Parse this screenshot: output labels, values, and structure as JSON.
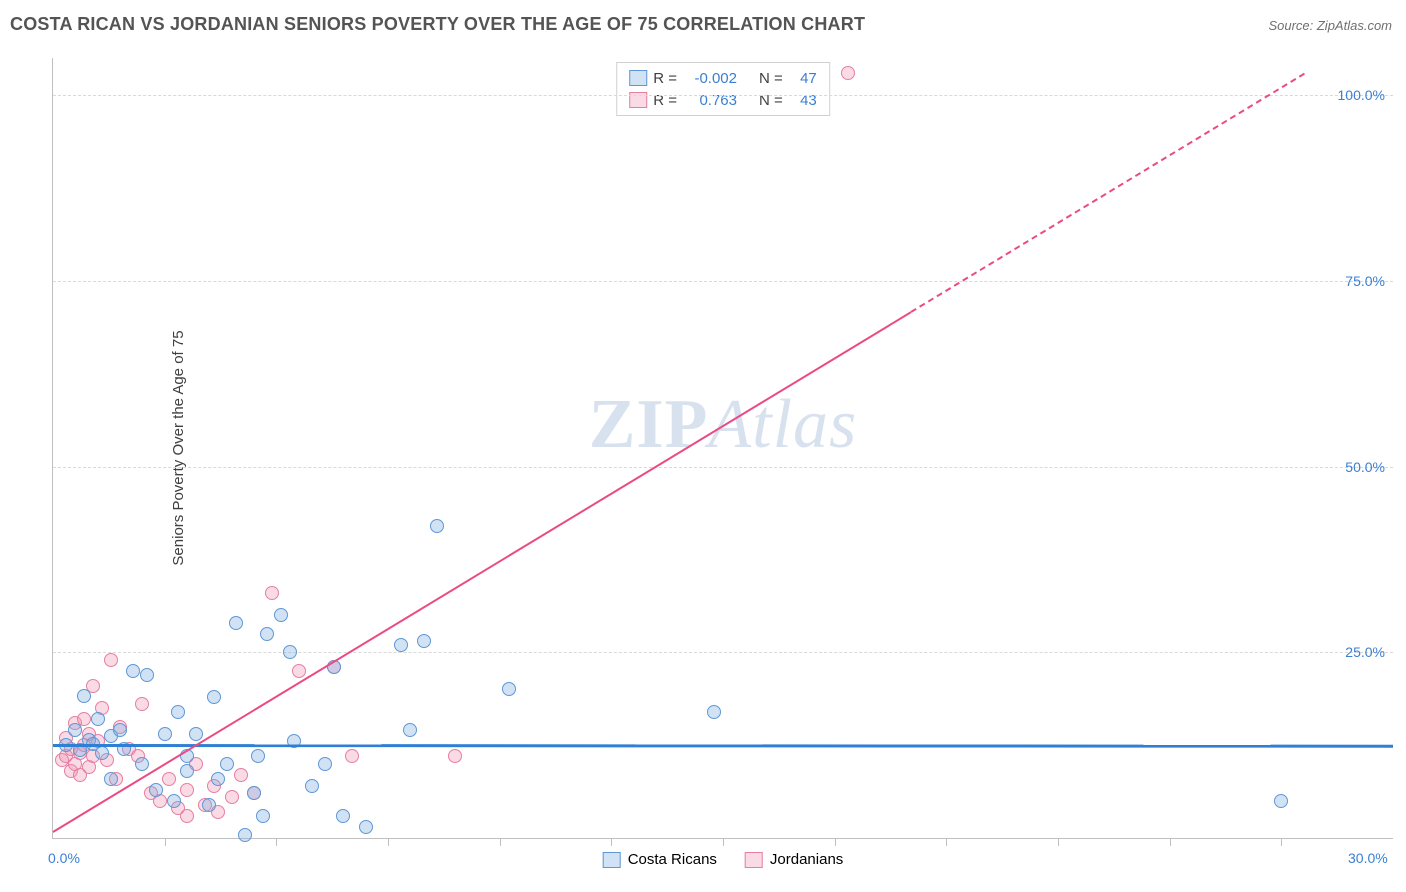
{
  "header": {
    "title": "COSTA RICAN VS JORDANIAN SENIORS POVERTY OVER THE AGE OF 75 CORRELATION CHART",
    "source": "Source: ZipAtlas.com"
  },
  "chart": {
    "type": "scatter",
    "ylabel": "Seniors Poverty Over the Age of 75",
    "watermark_a": "ZIP",
    "watermark_b": "Atlas",
    "xlim": [
      0,
      30
    ],
    "ylim": [
      0,
      105
    ],
    "x_axis_label_min": "0.0%",
    "x_axis_label_max": "30.0%",
    "y_ticks": [
      {
        "v": 25,
        "label": "25.0%"
      },
      {
        "v": 50,
        "label": "50.0%"
      },
      {
        "v": 75,
        "label": "75.0%"
      },
      {
        "v": 100,
        "label": "100.0%"
      }
    ],
    "x_tick_step": 2.5,
    "background_color": "#ffffff",
    "grid_color": "#d9d9d9",
    "axis_color": "#bfbfbf",
    "value_label_color": "#3b7fd1",
    "series": {
      "costa_ricans": {
        "label": "Costa Ricans",
        "fill_color": "rgba(123, 171, 226, 0.35)",
        "stroke_color": "#5f97d6",
        "trend_color": "#2f7fd5",
        "trend_width": 2.5,
        "trend_dash": "none",
        "trend": {
          "x1": 0,
          "y1": 12.7,
          "x2": 30,
          "y2": 12.6
        },
        "r_value": "-0.002",
        "n_value": "47",
        "marker_radius": 7,
        "points": [
          [
            0.3,
            12.5
          ],
          [
            0.5,
            14.5
          ],
          [
            0.6,
            11.8
          ],
          [
            0.7,
            19.1
          ],
          [
            0.8,
            13.2
          ],
          [
            0.9,
            12.7
          ],
          [
            1.0,
            16.0
          ],
          [
            1.1,
            11.5
          ],
          [
            1.3,
            13.8
          ],
          [
            1.3,
            8.0
          ],
          [
            1.5,
            14.5
          ],
          [
            1.6,
            12.0
          ],
          [
            1.8,
            22.5
          ],
          [
            2.0,
            10.0
          ],
          [
            2.1,
            22.0
          ],
          [
            2.3,
            6.5
          ],
          [
            2.5,
            14.0
          ],
          [
            2.7,
            5.0
          ],
          [
            2.8,
            17.0
          ],
          [
            3.0,
            11.0
          ],
          [
            3.0,
            9.0
          ],
          [
            3.2,
            14.0
          ],
          [
            3.5,
            4.5
          ],
          [
            3.6,
            19.0
          ],
          [
            3.7,
            8.0
          ],
          [
            3.9,
            10.0
          ],
          [
            4.1,
            29.0
          ],
          [
            4.5,
            6.0
          ],
          [
            4.6,
            11.0
          ],
          [
            4.7,
            3.0
          ],
          [
            4.8,
            27.5
          ],
          [
            5.1,
            30.0
          ],
          [
            5.3,
            25.0
          ],
          [
            5.4,
            13.0
          ],
          [
            5.8,
            7.0
          ],
          [
            6.1,
            10.0
          ],
          [
            6.3,
            23.0
          ],
          [
            6.5,
            3.0
          ],
          [
            7.0,
            1.5
          ],
          [
            7.8,
            26.0
          ],
          [
            8.0,
            14.5
          ],
          [
            8.3,
            26.5
          ],
          [
            8.6,
            42.0
          ],
          [
            10.2,
            20.0
          ],
          [
            14.8,
            17.0
          ],
          [
            4.3,
            0.4
          ],
          [
            27.5,
            5.0
          ]
        ]
      },
      "jordanians": {
        "label": "Jordanians",
        "fill_color": "rgba(238, 150, 180, 0.35)",
        "stroke_color": "#e57fa2",
        "trend_color": "#ea4b84",
        "trend_width": 2,
        "trend_dash": "6,6",
        "trend_solid_until_x": 19.2,
        "trend": {
          "x1": 0,
          "y1": 1.0,
          "x2": 28,
          "y2": 103.0
        },
        "r_value": "0.763",
        "n_value": "43",
        "marker_radius": 7,
        "points": [
          [
            0.2,
            10.5
          ],
          [
            0.3,
            11.0
          ],
          [
            0.3,
            13.5
          ],
          [
            0.4,
            9.0
          ],
          [
            0.4,
            12.0
          ],
          [
            0.5,
            10.0
          ],
          [
            0.5,
            15.5
          ],
          [
            0.6,
            11.5
          ],
          [
            0.6,
            8.5
          ],
          [
            0.7,
            16.0
          ],
          [
            0.7,
            12.5
          ],
          [
            0.8,
            14.0
          ],
          [
            0.8,
            9.5
          ],
          [
            0.9,
            20.5
          ],
          [
            0.9,
            11.0
          ],
          [
            1.0,
            13.0
          ],
          [
            1.1,
            17.5
          ],
          [
            1.2,
            10.5
          ],
          [
            1.3,
            24.0
          ],
          [
            1.4,
            8.0
          ],
          [
            1.5,
            15.0
          ],
          [
            1.7,
            12.0
          ],
          [
            1.9,
            11.0
          ],
          [
            2.0,
            18.0
          ],
          [
            2.2,
            6.0
          ],
          [
            2.4,
            5.0
          ],
          [
            2.6,
            8.0
          ],
          [
            2.8,
            4.0
          ],
          [
            3.0,
            6.5
          ],
          [
            3.0,
            3.0
          ],
          [
            3.2,
            10.0
          ],
          [
            3.4,
            4.5
          ],
          [
            3.6,
            7.0
          ],
          [
            3.7,
            3.5
          ],
          [
            4.0,
            5.5
          ],
          [
            4.2,
            8.5
          ],
          [
            4.5,
            6.0
          ],
          [
            4.9,
            33.0
          ],
          [
            5.5,
            22.5
          ],
          [
            6.3,
            23.0
          ],
          [
            6.7,
            11.0
          ],
          [
            9.0,
            11.0
          ],
          [
            17.8,
            103.0
          ]
        ]
      }
    },
    "stats_legend": {
      "r_label": "R =",
      "n_label": "N ="
    },
    "bottom_legend_order": [
      "costa_ricans",
      "jordanians"
    ]
  }
}
